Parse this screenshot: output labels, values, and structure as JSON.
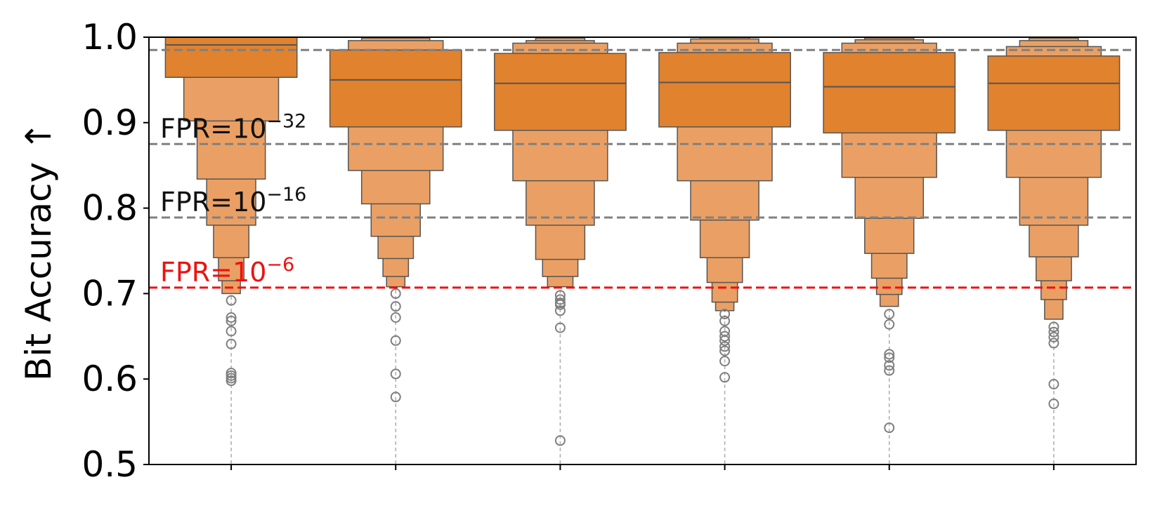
{
  "chart_data": {
    "type": "boxen",
    "ylabel": "Bit Accuracy ↑",
    "xlabel": "",
    "ylim": [
      0.5,
      1.0
    ],
    "y_ticks": [
      "0.5",
      "0.6",
      "0.7",
      "0.8",
      "0.9",
      "1.0"
    ],
    "n_categories": 6,
    "grid": "x-only (dashed)",
    "colors": {
      "center_box": "#e0822e",
      "outer_box": "#eaa064",
      "edge": "#555555",
      "outlier": "#7f7f7f",
      "threshold_gray": "#808080",
      "threshold_red": "#ee1111"
    },
    "thresholds": [
      {
        "value": 0.985,
        "label_main": "",
        "label_exp": "",
        "color": "#808080"
      },
      {
        "value": 0.875,
        "label_main": "FPR=10",
        "label_exp": "−32",
        "color": "#808080"
      },
      {
        "value": 0.789,
        "label_main": "FPR=10",
        "label_exp": "−16",
        "color": "#808080"
      },
      {
        "value": 0.707,
        "label_main": "FPR=10",
        "label_exp": "−6",
        "color": "#ee1111"
      }
    ],
    "series": [
      {
        "median": 0.991,
        "boxes": [
          [
            0.953,
            1.0
          ],
          [
            0.902,
            1.0
          ],
          [
            0.834,
            1.0
          ],
          [
            0.78,
            1.0
          ],
          [
            0.742,
            1.0
          ],
          [
            0.715,
            1.0
          ],
          [
            0.7,
            1.0
          ]
        ],
        "outliers": [
          0.692,
          0.672,
          0.668,
          0.656,
          0.641,
          0.607,
          0.604,
          0.601,
          0.598
        ]
      },
      {
        "median": 0.95,
        "boxes": [
          [
            0.895,
            0.985
          ],
          [
            0.844,
            0.996
          ],
          [
            0.805,
            0.999
          ],
          [
            0.767,
            1.0
          ],
          [
            0.741,
            1.0
          ],
          [
            0.72,
            1.0
          ],
          [
            0.708,
            1.0
          ]
        ],
        "outliers": [
          0.7,
          0.685,
          0.672,
          0.645,
          0.606,
          0.579
        ]
      },
      {
        "median": 0.946,
        "boxes": [
          [
            0.891,
            0.981
          ],
          [
            0.832,
            0.993
          ],
          [
            0.78,
            0.996
          ],
          [
            0.74,
            0.999
          ],
          [
            0.72,
            1.0
          ],
          [
            0.708,
            1.0
          ]
        ],
        "outliers": [
          0.698,
          0.693,
          0.689,
          0.687,
          0.68,
          0.66,
          0.528
        ]
      },
      {
        "median": 0.947,
        "boxes": [
          [
            0.895,
            0.982
          ],
          [
            0.832,
            0.993
          ],
          [
            0.786,
            0.998
          ],
          [
            0.742,
            1.0
          ],
          [
            0.713,
            1.0
          ],
          [
            0.69,
            1.0
          ],
          [
            0.68,
            1.0
          ]
        ],
        "outliers": [
          0.676,
          0.668,
          0.656,
          0.65,
          0.645,
          0.638,
          0.633,
          0.621,
          0.602
        ]
      },
      {
        "median": 0.942,
        "boxes": [
          [
            0.888,
            0.982
          ],
          [
            0.836,
            0.993
          ],
          [
            0.788,
            0.997
          ],
          [
            0.747,
            0.999
          ],
          [
            0.718,
            1.0
          ],
          [
            0.699,
            1.0
          ],
          [
            0.685,
            1.0
          ]
        ],
        "outliers": [
          0.676,
          0.664,
          0.629,
          0.625,
          0.616,
          0.61,
          0.543
        ]
      },
      {
        "median": 0.946,
        "boxes": [
          [
            0.891,
            0.978
          ],
          [
            0.836,
            0.989
          ],
          [
            0.78,
            0.996
          ],
          [
            0.743,
            0.999
          ],
          [
            0.715,
            1.0
          ],
          [
            0.693,
            1.0
          ],
          [
            0.67,
            1.0
          ]
        ],
        "outliers": [
          0.661,
          0.655,
          0.649,
          0.642,
          0.594,
          0.571
        ]
      }
    ]
  }
}
